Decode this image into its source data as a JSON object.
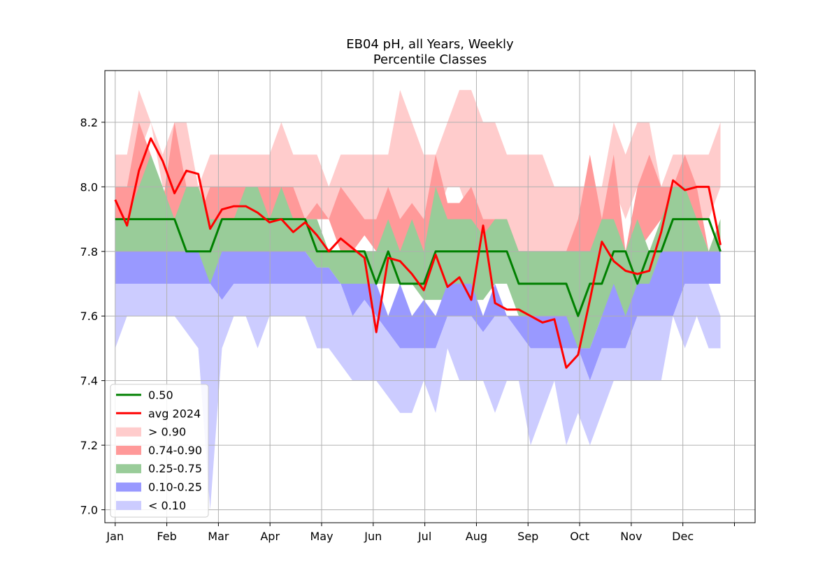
{
  "chart_data": {
    "type": "area",
    "title": "EB04 pH, all Years, Weekly",
    "subtitle": "Percentile Classes",
    "xlabel": "",
    "ylabel": "",
    "x_ticks": [
      "Jan",
      "Feb",
      "Mar",
      "Apr",
      "May",
      "Jun",
      "Jul",
      "Aug",
      "Sep",
      "Oct",
      "Nov",
      "Dec",
      ""
    ],
    "xlim": [
      -0.2,
      12.4
    ],
    "ylim": [
      6.96,
      8.36
    ],
    "y_ticks": [
      "7.0",
      "7.2",
      "7.4",
      "7.6",
      "7.8",
      "8.0",
      "8.2"
    ],
    "grid": true,
    "legend_position": "lower-left",
    "x": [
      0.0,
      0.23,
      0.46,
      0.69,
      0.92,
      1.15,
      1.38,
      1.61,
      1.84,
      2.07,
      2.3,
      2.53,
      2.76,
      2.99,
      3.22,
      3.45,
      3.68,
      3.91,
      4.14,
      4.37,
      4.6,
      4.83,
      5.06,
      5.29,
      5.52,
      5.75,
      5.98,
      6.21,
      6.44,
      6.67,
      6.9,
      7.13,
      7.36,
      7.59,
      7.82,
      8.05,
      8.28,
      8.51,
      8.74,
      8.97,
      9.2,
      9.43,
      9.66,
      9.89,
      10.12,
      10.35,
      10.58,
      10.81,
      11.04,
      11.27,
      11.5,
      11.73
    ],
    "bands": [
      {
        "name": "> 0.90",
        "color": "#ffcccc",
        "lower": [
          7.9,
          8.0,
          8.1,
          8.2,
          8.0,
          8.0,
          7.9,
          7.8,
          7.9,
          8.0,
          8.0,
          8.0,
          8.0,
          8.0,
          7.9,
          8.0,
          7.9,
          7.9,
          7.9,
          7.9,
          7.9,
          7.9,
          7.9,
          7.8,
          7.9,
          7.9,
          7.8,
          7.9,
          8.0,
          8.0,
          7.9,
          7.9,
          7.8,
          7.8,
          7.8,
          7.7,
          7.6,
          7.6,
          7.8,
          7.8,
          7.9,
          7.9,
          8.0,
          7.9,
          8.0,
          7.9,
          8.0,
          8.0,
          8.0,
          7.9,
          7.9,
          8.0
        ],
        "upper": [
          8.1,
          8.1,
          8.3,
          8.2,
          8.1,
          8.2,
          8.2,
          8.0,
          8.1,
          8.1,
          8.1,
          8.1,
          8.1,
          8.1,
          8.2,
          8.1,
          8.1,
          8.1,
          8.0,
          8.1,
          8.1,
          8.1,
          8.1,
          8.1,
          8.3,
          8.2,
          8.1,
          8.1,
          8.2,
          8.3,
          8.3,
          8.2,
          8.2,
          8.1,
          8.1,
          8.1,
          8.1,
          8.0,
          8.0,
          8.0,
          8.0,
          8.0,
          8.2,
          8.1,
          8.2,
          8.2,
          8.0,
          8.1,
          8.1,
          8.1,
          8.1,
          8.2
        ]
      },
      {
        "name": "0.74-0.90",
        "color": "#ff9999",
        "lower": [
          7.9,
          7.9,
          7.9,
          7.95,
          7.9,
          7.9,
          7.9,
          7.9,
          7.8,
          7.9,
          7.9,
          7.9,
          7.9,
          7.9,
          7.9,
          7.9,
          7.9,
          7.9,
          7.9,
          7.8,
          7.8,
          7.85,
          7.8,
          7.8,
          7.8,
          7.8,
          7.8,
          7.8,
          7.85,
          7.8,
          7.85,
          7.85,
          7.8,
          7.75,
          7.7,
          7.7,
          7.6,
          7.5,
          7.7,
          7.7,
          7.75,
          7.7,
          7.7,
          7.7,
          7.8,
          7.85,
          7.9,
          7.9,
          7.9,
          7.9,
          7.8,
          7.85
        ],
        "upper": [
          8.0,
          8.0,
          8.2,
          8.1,
          7.95,
          8.2,
          8.0,
          7.9,
          8.0,
          8.0,
          8.0,
          8.0,
          8.0,
          8.0,
          8.0,
          8.0,
          7.9,
          7.95,
          7.9,
          8.0,
          7.95,
          7.9,
          7.9,
          8.0,
          7.9,
          7.95,
          7.9,
          8.1,
          7.95,
          7.95,
          8.0,
          7.9,
          7.9,
          7.9,
          7.8,
          7.8,
          7.8,
          7.8,
          7.8,
          7.9,
          8.1,
          7.9,
          8.1,
          7.8,
          8.0,
          8.1,
          8.0,
          8.0,
          8.1,
          8.0,
          7.8,
          7.9
        ]
      },
      {
        "name": "0.25-0.75",
        "color": "#99cc99",
        "lower": [
          7.8,
          7.8,
          7.8,
          7.8,
          7.8,
          7.8,
          7.8,
          7.7,
          7.7,
          7.75,
          7.75,
          7.8,
          7.8,
          7.8,
          7.8,
          7.8,
          7.8,
          7.75,
          7.75,
          7.7,
          7.7,
          7.7,
          7.7,
          7.7,
          7.7,
          7.7,
          7.65,
          7.65,
          7.65,
          7.65,
          7.65,
          7.65,
          7.7,
          7.7,
          7.6,
          7.6,
          7.6,
          7.6,
          7.5,
          7.5,
          7.5,
          7.6,
          7.6,
          7.6,
          7.6,
          7.7,
          7.7,
          7.8,
          7.8,
          7.8,
          7.8,
          7.8
        ],
        "upper": [
          7.9,
          7.9,
          8.0,
          8.1,
          8.0,
          7.9,
          8.0,
          8.0,
          7.9,
          7.9,
          7.9,
          8.0,
          8.0,
          7.9,
          8.0,
          7.9,
          7.9,
          7.9,
          7.8,
          7.8,
          7.8,
          7.8,
          7.8,
          7.9,
          7.8,
          7.9,
          7.8,
          8.0,
          7.9,
          7.9,
          7.9,
          7.85,
          7.9,
          7.9,
          7.8,
          7.8,
          7.8,
          7.8,
          7.8,
          7.8,
          7.8,
          7.9,
          7.9,
          7.8,
          7.9,
          7.8,
          7.9,
          8.0,
          8.0,
          7.9,
          7.8,
          7.9
        ]
      },
      {
        "name": "0.10-0.25",
        "color": "#9999ff",
        "lower": [
          7.7,
          7.7,
          7.7,
          7.7,
          7.7,
          7.7,
          7.7,
          7.7,
          7.7,
          7.65,
          7.7,
          7.7,
          7.7,
          7.7,
          7.7,
          7.7,
          7.7,
          7.7,
          7.7,
          7.7,
          7.6,
          7.65,
          7.6,
          7.55,
          7.5,
          7.5,
          7.5,
          7.5,
          7.6,
          7.6,
          7.6,
          7.55,
          7.6,
          7.6,
          7.55,
          7.5,
          7.5,
          7.5,
          7.5,
          7.5,
          7.4,
          7.5,
          7.5,
          7.5,
          7.6,
          7.6,
          7.6,
          7.6,
          7.7,
          7.7,
          7.7,
          7.7
        ],
        "upper": [
          7.8,
          7.8,
          7.8,
          7.8,
          7.8,
          7.8,
          7.8,
          7.8,
          7.7,
          7.8,
          7.8,
          7.8,
          7.8,
          7.8,
          7.8,
          7.8,
          7.8,
          7.75,
          7.75,
          7.7,
          7.7,
          7.7,
          7.7,
          7.6,
          7.7,
          7.6,
          7.65,
          7.6,
          7.7,
          7.7,
          7.7,
          7.6,
          7.7,
          7.6,
          7.6,
          7.6,
          7.6,
          7.6,
          7.6,
          7.5,
          7.5,
          7.6,
          7.7,
          7.6,
          7.7,
          7.7,
          7.8,
          7.8,
          7.8,
          7.8,
          7.8,
          7.8
        ]
      },
      {
        "name": "< 0.10",
        "color": "#ccccff",
        "lower": [
          7.5,
          7.6,
          7.6,
          7.6,
          7.6,
          7.6,
          7.55,
          7.5,
          7.0,
          7.5,
          7.6,
          7.6,
          7.5,
          7.6,
          7.6,
          7.6,
          7.6,
          7.5,
          7.5,
          7.45,
          7.4,
          7.4,
          7.4,
          7.35,
          7.3,
          7.3,
          7.4,
          7.3,
          7.5,
          7.4,
          7.4,
          7.4,
          7.3,
          7.4,
          7.4,
          7.2,
          7.3,
          7.4,
          7.2,
          7.3,
          7.2,
          7.3,
          7.4,
          7.4,
          7.4,
          7.4,
          7.4,
          7.6,
          7.5,
          7.6,
          7.5,
          7.5
        ],
        "upper": [
          7.7,
          7.7,
          7.7,
          7.7,
          7.7,
          7.7,
          7.7,
          7.7,
          7.7,
          7.65,
          7.7,
          7.7,
          7.7,
          7.7,
          7.7,
          7.7,
          7.7,
          7.7,
          7.7,
          7.7,
          7.6,
          7.65,
          7.6,
          7.55,
          7.5,
          7.5,
          7.5,
          7.5,
          7.6,
          7.6,
          7.6,
          7.55,
          7.6,
          7.6,
          7.55,
          7.5,
          7.5,
          7.5,
          7.5,
          7.5,
          7.4,
          7.5,
          7.5,
          7.5,
          7.6,
          7.6,
          7.6,
          7.6,
          7.7,
          7.7,
          7.7,
          7.6
        ]
      }
    ],
    "series": [
      {
        "name": "0.50",
        "color": "#008000",
        "values": [
          7.9,
          7.9,
          7.9,
          7.9,
          7.9,
          7.9,
          7.8,
          7.8,
          7.8,
          7.9,
          7.9,
          7.9,
          7.9,
          7.9,
          7.9,
          7.9,
          7.9,
          7.8,
          7.8,
          7.8,
          7.8,
          7.8,
          7.7,
          7.8,
          7.7,
          7.7,
          7.7,
          7.8,
          7.8,
          7.8,
          7.8,
          7.8,
          7.8,
          7.8,
          7.7,
          7.7,
          7.7,
          7.7,
          7.7,
          7.6,
          7.7,
          7.7,
          7.8,
          7.8,
          7.7,
          7.8,
          7.8,
          7.9,
          7.9,
          7.9,
          7.9,
          7.8
        ]
      },
      {
        "name": "avg 2024",
        "color": "#ff0000",
        "values": [
          7.96,
          7.88,
          8.05,
          8.15,
          8.08,
          7.98,
          8.05,
          8.04,
          7.87,
          7.93,
          7.94,
          7.94,
          7.92,
          7.89,
          7.9,
          7.86,
          7.89,
          7.85,
          7.8,
          7.84,
          7.81,
          7.78,
          7.55,
          7.78,
          7.77,
          7.73,
          7.68,
          7.79,
          7.69,
          7.72,
          7.65,
          7.88,
          7.64,
          7.62,
          7.62,
          7.6,
          7.58,
          7.59,
          7.44,
          7.48,
          7.65,
          7.83,
          7.77,
          7.74,
          7.73,
          7.74,
          7.86,
          8.02,
          7.99,
          8.0,
          8.0,
          7.82
        ]
      }
    ]
  }
}
